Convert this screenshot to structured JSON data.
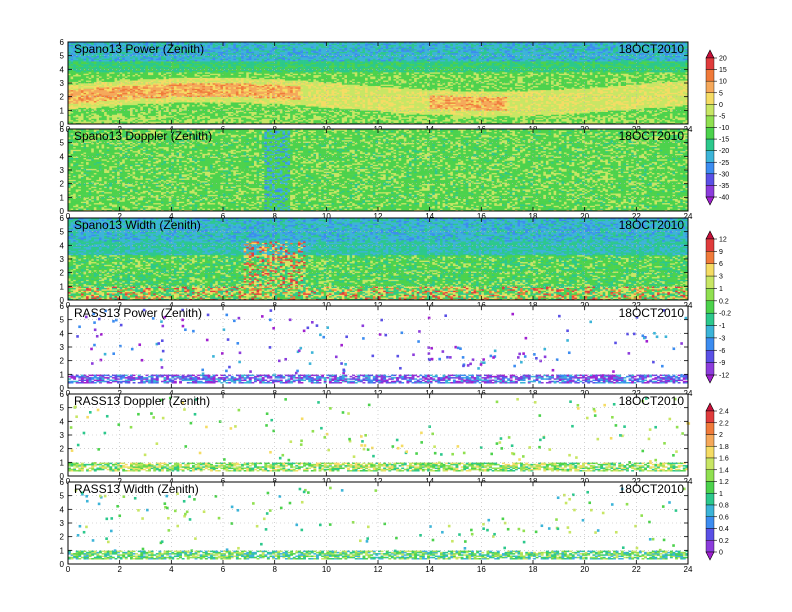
{
  "date": "18OCT2010",
  "chart_data": [
    {
      "type": "heatmap",
      "title": "Spano13 Power (Zenith)",
      "date_label": "18OCT2010",
      "xlim": [
        0,
        24
      ],
      "ylim": [
        0,
        6
      ],
      "xticks": [
        0,
        2,
        4,
        6,
        8,
        10,
        12,
        14,
        16,
        18,
        20,
        22,
        24
      ],
      "yticks": [
        0,
        1,
        2,
        3,
        4,
        5,
        6
      ],
      "grid": true,
      "colorbar": 1,
      "pattern": "power_spano",
      "description_values": "high values 5-15 in 1-3 km band, background ~-15 to -20, low ~-30 above 4 km"
    },
    {
      "type": "heatmap",
      "title": "Spano13 Doppler (Zenith)",
      "date_label": "18OCT2010",
      "xlim": [
        0,
        24
      ],
      "ylim": [
        0,
        6
      ],
      "xticks": [
        0,
        2,
        4,
        6,
        8,
        10,
        12,
        14,
        16,
        18,
        20,
        22,
        24
      ],
      "yticks": [
        0,
        1,
        2,
        3,
        4,
        5,
        6
      ],
      "grid": true,
      "colorbar": 1,
      "pattern": "doppler_spano"
    },
    {
      "type": "heatmap",
      "title": "Spano13 Width (Zenith)",
      "date_label": "18OCT2010",
      "xlim": [
        0,
        24
      ],
      "ylim": [
        0,
        6
      ],
      "xticks": [
        0,
        2,
        4,
        6,
        8,
        10,
        12,
        14,
        16,
        18,
        20,
        22,
        24
      ],
      "yticks": [
        0,
        1,
        2,
        3,
        4,
        5,
        6
      ],
      "grid": true,
      "colorbar": 2,
      "pattern": "width_spano"
    },
    {
      "type": "heatmap",
      "title": "RASS13 Power (Zenith)",
      "date_label": "18OCT2010",
      "xlim": [
        0,
        24
      ],
      "ylim": [
        0,
        6
      ],
      "xticks": [
        0,
        2,
        4,
        6,
        8,
        10,
        12,
        14,
        16,
        18,
        20,
        22,
        24
      ],
      "yticks": [
        0,
        1,
        2,
        3,
        4,
        5,
        6
      ],
      "grid": true,
      "colorbar": 2,
      "pattern": "power_rass"
    },
    {
      "type": "heatmap",
      "title": "RASS13 Doppler (Zenith)",
      "date_label": "18OCT2010",
      "xlim": [
        0,
        24
      ],
      "ylim": [
        0,
        6
      ],
      "xticks": [
        0,
        2,
        4,
        6,
        8,
        10,
        12,
        14,
        16,
        18,
        20,
        22,
        24
      ],
      "yticks": [
        0,
        1,
        2,
        3,
        4,
        5,
        6
      ],
      "grid": true,
      "colorbar": 3,
      "pattern": "doppler_rass"
    },
    {
      "type": "heatmap",
      "title": "RASS13 Width (Zenith)",
      "date_label": "18OCT2010",
      "xlim": [
        0,
        24
      ],
      "ylim": [
        0,
        6
      ],
      "xticks": [
        0,
        2,
        4,
        6,
        8,
        10,
        12,
        14,
        16,
        18,
        20,
        22,
        24
      ],
      "yticks": [
        0,
        1,
        2,
        3,
        4,
        5,
        6
      ],
      "grid": true,
      "colorbar": 3,
      "pattern": "width_rass"
    }
  ],
  "colorbars": [
    {
      "labels": [
        "20",
        "15",
        "10",
        "5",
        "0",
        "-5",
        "-10",
        "-15",
        "-20",
        "-25",
        "-30",
        "-35",
        "-40"
      ],
      "colors": [
        "#c8103a",
        "#e03c3c",
        "#f07a3a",
        "#f5a85a",
        "#f5dc64",
        "#c8e664",
        "#90e050",
        "#4cd24c",
        "#2cc88c",
        "#3cb4d8",
        "#3c8cf0",
        "#5a50e6",
        "#8c3cdc",
        "#a020d0"
      ]
    },
    {
      "labels": [
        "12",
        "9",
        "6",
        "3",
        "1",
        "0.2",
        "-0.2",
        "-1",
        "-3",
        "-6",
        "-9",
        "-12"
      ],
      "colors": [
        "#c8103a",
        "#e03c3c",
        "#f07a3a",
        "#f5dc64",
        "#c8e664",
        "#90e050",
        "#4cd24c",
        "#2cc88c",
        "#3cb4d8",
        "#3c8cf0",
        "#5a50e6",
        "#8c3cdc",
        "#a020d0"
      ]
    },
    {
      "labels": [
        "2.4",
        "2.2",
        "2",
        "1.8",
        "1.6",
        "1.4",
        "1.2",
        "1",
        "0.8",
        "0.6",
        "0.4",
        "0.2",
        "0"
      ],
      "colors": [
        "#c8103a",
        "#e03c3c",
        "#f07a3a",
        "#f5a85a",
        "#f5dc64",
        "#c8e664",
        "#90e050",
        "#4cd24c",
        "#2cc88c",
        "#3cb4d8",
        "#3c8cf0",
        "#5a50e6",
        "#8c3cdc",
        "#a020d0"
      ]
    }
  ]
}
